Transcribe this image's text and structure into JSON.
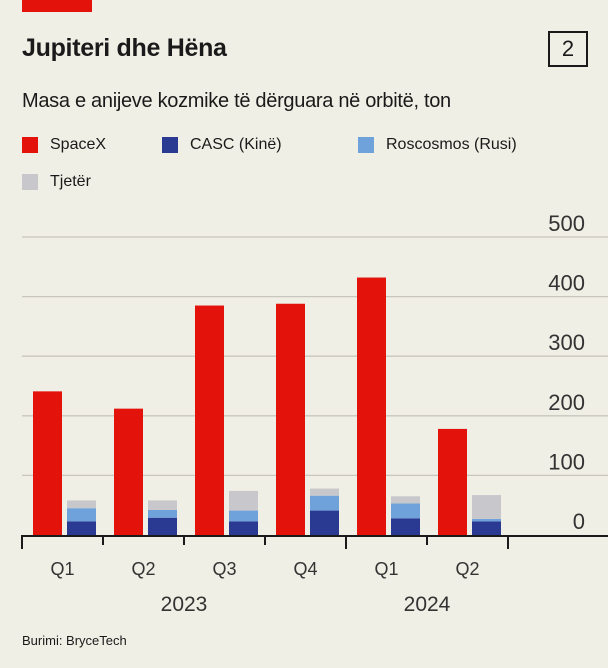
{
  "header": {
    "title": "Jupiteri dhe Hëna",
    "chart_number": "2",
    "subtitle": "Masa e anijeve kozmike të dërguara në orbitë, ton"
  },
  "source": "Burimi: BryceTech",
  "colors": {
    "SpaceX": "#e3120b",
    "CASC (Kinë)": "#2a3a93",
    "Roscosmos (Rusi)": "#6fa2da",
    "Tjetër": "#c8c8cc"
  },
  "chart_data": {
    "type": "bar",
    "title": "Jupiteri dhe Hëna",
    "subtitle": "Masa e anijeve kozmike të dërguara në orbitë, ton",
    "categories": [
      "Q1",
      "Q2",
      "Q3",
      "Q4",
      "Q1",
      "Q2"
    ],
    "years": [
      {
        "label": "2023",
        "span": 4
      },
      {
        "label": "2024",
        "span": 2
      }
    ],
    "legend": [
      "SpaceX",
      "CASC (Kinë)",
      "Roscosmos (Rusi)",
      "Tjetër"
    ],
    "series": [
      {
        "name": "SpaceX",
        "values": [
          241,
          212,
          385,
          388,
          432,
          178
        ]
      },
      {
        "name": "CASC (Kinë)",
        "stack": "others",
        "values": [
          23,
          29,
          23,
          41,
          28,
          23
        ]
      },
      {
        "name": "Roscosmos (Rusi)",
        "stack": "others",
        "values": [
          22,
          13,
          18,
          25,
          25,
          4
        ]
      },
      {
        "name": "Tjetër",
        "stack": "others",
        "values": [
          13,
          16,
          33,
          12,
          12,
          40
        ]
      }
    ],
    "ylim": [
      0,
      500
    ],
    "yticks": [
      "0",
      "100",
      "200",
      "300",
      "400",
      "500"
    ],
    "grid": true,
    "legend_position": "top-left"
  }
}
